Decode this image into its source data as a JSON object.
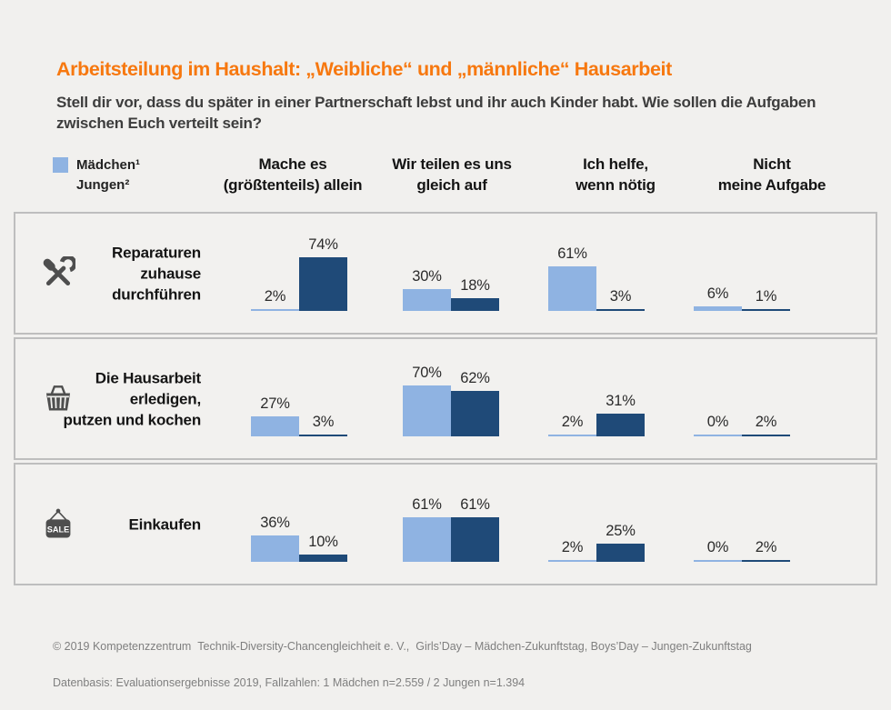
{
  "title": "Arbeitsteilung im Haushalt: „Weibliche“ und „männliche“ Hausarbeit",
  "subtitle": "Stell dir vor, dass du später in einer Partnerschaft lebst und ihr auch Kinder habt. Wie sollen die Aufgaben\nzwischen Euch verteilt sein?",
  "legend": {
    "girls_label": "Mädchen¹",
    "boys_label": "Jungen²"
  },
  "columns": [
    "Mache es\n(größtenteils) allein",
    "Wir teilen es uns\ngleich auf",
    "Ich helfe,\nwenn nötig",
    "Nicht\nmeine Aufgabe"
  ],
  "rows": [
    {
      "icon": "crossed-tools-icon",
      "label": "Reparaturen\nzuhause\ndurchführen",
      "girls": [
        2,
        30,
        61,
        6
      ],
      "boys": [
        74,
        18,
        3,
        1
      ]
    },
    {
      "icon": "shopping-basket-icon",
      "label": "Die Hausarbeit\nerledigen,\nputzen und kochen",
      "girls": [
        27,
        70,
        2,
        0
      ],
      "boys": [
        3,
        62,
        31,
        2
      ]
    },
    {
      "icon": "sale-sign-icon",
      "label": "Einkaufen",
      "girls": [
        36,
        61,
        2,
        0
      ],
      "boys": [
        10,
        61,
        25,
        2
      ]
    }
  ],
  "footer": {
    "line1": "© 2019 Kompetenzzentrum  Technik-Diversity-Chancengleichheit e. V.,  Girls’Day – Mädchen-Zukunftstag, Boys’Day – Jungen-Zukunftstag",
    "line2": "Datenbasis: Evaluationsergebnisse 2019, Fallzahlen: 1 Mädchen n=2.559 / 2 Jungen n=1.394"
  },
  "colors": {
    "girls": "#8FB3E2",
    "boys": "#1F4A78",
    "title": "#F7780F",
    "icon": "#4E4E4E"
  },
  "unit": "%",
  "chart_data": {
    "type": "bar",
    "title": "Arbeitsteilung im Haushalt: „Weibliche“ und „männliche“ Hausarbeit",
    "question": "Stell dir vor, dass du später in einer Partnerschaft lebst und ihr auch Kinder habt. Wie sollen die Aufgaben zwischen Euch verteilt sein?",
    "categories": [
      "Mache es (größtenteils) allein",
      "Wir teilen es uns gleich auf",
      "Ich helfe, wenn nötig",
      "Nicht meine Aufgabe"
    ],
    "unit": "%",
    "ylim": [
      0,
      100
    ],
    "legend_position": "top-left",
    "grid": false,
    "groups": [
      {
        "task": "Reparaturen zuhause durchführen",
        "series": [
          {
            "name": "Mädchen",
            "values": [
              2,
              30,
              61,
              6
            ]
          },
          {
            "name": "Jungen",
            "values": [
              74,
              18,
              3,
              1
            ]
          }
        ]
      },
      {
        "task": "Die Hausarbeit erledigen, putzen und kochen",
        "series": [
          {
            "name": "Mädchen",
            "values": [
              27,
              70,
              2,
              0
            ]
          },
          {
            "name": "Jungen",
            "values": [
              3,
              62,
              31,
              2
            ]
          }
        ]
      },
      {
        "task": "Einkaufen",
        "series": [
          {
            "name": "Mädchen",
            "values": [
              36,
              61,
              2,
              0
            ]
          },
          {
            "name": "Jungen",
            "values": [
              10,
              61,
              25,
              2
            ]
          }
        ]
      }
    ],
    "footnotes": [
      "© 2019 Kompetenzzentrum Technik-Diversity-Chancengleichheit e. V., Girls’Day – Mädchen-Zukunftstag, Boys’Day – Jungen-Zukunftstag",
      "Datenbasis: Evaluationsergebnisse 2019, Fallzahlen: 1 Mädchen n=2.559 / 2 Jungen n=1.394"
    ]
  }
}
